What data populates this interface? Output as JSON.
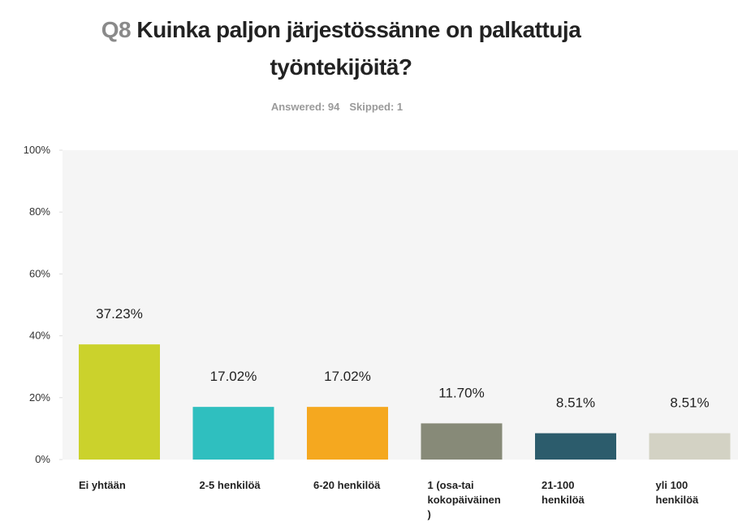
{
  "chart_data": {
    "type": "bar",
    "question_number": "Q8",
    "title": "Kuinka paljon järjestössänne on palkattuja työntekijöitä?",
    "answered": "Answered: 94",
    "skipped": "Skipped: 1",
    "categories": [
      "Ei yhtään",
      "2-5 henkilöä",
      "6-20 henkilöä",
      "1 (osa-tai kokopäiväinen)",
      "21-100 henkilöä",
      "yli 100 henkilöä"
    ],
    "values": [
      37.23,
      17.02,
      17.02,
      11.7,
      8.51,
      8.51
    ],
    "value_labels": [
      "37.23%",
      "17.02%",
      "17.02%",
      "11.70%",
      "8.51%",
      "8.51%"
    ],
    "colors": [
      "#cbd22c",
      "#2fbfbf",
      "#f5a81f",
      "#878a78",
      "#2c5c6c",
      "#d3d2c4"
    ],
    "ylim": [
      0,
      100
    ],
    "yticks": [
      {
        "value": 0,
        "label": "0%"
      },
      {
        "value": 20,
        "label": "20%"
      },
      {
        "value": 40,
        "label": "40%"
      },
      {
        "value": 60,
        "label": "60%"
      },
      {
        "value": 80,
        "label": "80%"
      },
      {
        "value": 100,
        "label": "100%"
      }
    ]
  }
}
